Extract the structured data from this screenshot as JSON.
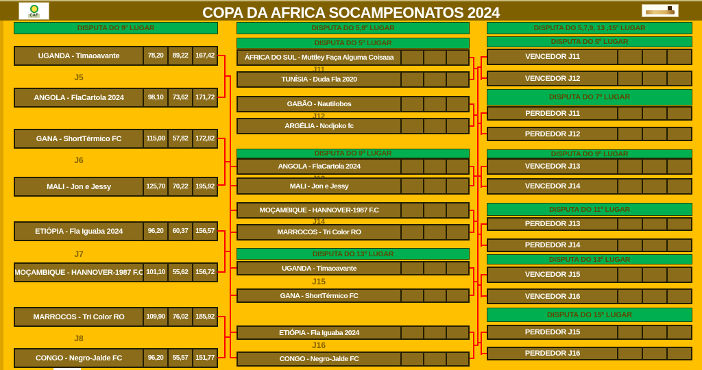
{
  "header": {
    "title": "COPA DA AFRICA SOCAMPEONATOS  2024",
    "caf_logo_text": "CAF"
  },
  "colors": {
    "background_gold": "#FFC000",
    "cell_brown": "#8A6C1A",
    "banner_brown": "#7F6000",
    "header_green": "#00B050",
    "connector_red": "#FF0000"
  },
  "columns": {
    "left": {
      "header": "DISPUTA DO 9º LUGAR",
      "matches": [
        {
          "label": "J5",
          "teams": [
            {
              "name": "UGANDA - Timaoavante",
              "scores": [
                "78,20",
                "89,22",
                "167,42"
              ]
            },
            {
              "name": "ANGOLA - FlaCartola 2024",
              "scores": [
                "98,10",
                "73,62",
                "171,72"
              ]
            }
          ]
        },
        {
          "label": "J6",
          "teams": [
            {
              "name": "GANA - ShortTérmico FC",
              "scores": [
                "115,00",
                "57,82",
                "172,82"
              ]
            },
            {
              "name": "MALI - Jon e Jessy",
              "scores": [
                "125,70",
                "70,22",
                "195,92"
              ]
            }
          ]
        },
        {
          "label": "J7",
          "teams": [
            {
              "name": "ETIÓPIA - Fla Iguaba 2024",
              "scores": [
                "96,20",
                "60,37",
                "156,57"
              ]
            },
            {
              "name": "MOÇAMBIQUE - HANNOVER-1987 F.C",
              "scores": [
                "101,10",
                "55,62",
                "156,72"
              ]
            }
          ]
        },
        {
          "label": "J8",
          "teams": [
            {
              "name": "MARROCOS - Tri Color RO",
              "scores": [
                "109,90",
                "76,02",
                "185,92"
              ]
            },
            {
              "name": "CONGO - Negro-Jalde FC",
              "scores": [
                "96,20",
                "55,57",
                "151,77"
              ]
            }
          ]
        }
      ]
    },
    "middle": {
      "header": "DISPUTA DO 5,9º LUGAR",
      "sections": [
        {
          "header": "DISPUTA DO 5º LUGAR",
          "matches": [
            {
              "label": "J11",
              "teams": [
                "ÁFRICA DO SUL - Muttley Faça Alguma Coisaaa",
                "TUNÍSIA - Duda Fla 2020"
              ]
            },
            {
              "label": "J12",
              "teams": [
                "GABÃO - Nautilobos",
                "ARGÉLIA -  Nodjoko fc"
              ]
            }
          ]
        },
        {
          "header": "DISPUTA DO 9º LUGAR",
          "matches": [
            {
              "label": "J13",
              "teams": [
                "ANGOLA - FlaCartola 2024",
                "MALI - Jon e Jessy"
              ]
            },
            {
              "label": "J14",
              "teams": [
                "MOÇAMBIQUE - HANNOVER-1987 F.C",
                "MARROCOS - Tri Color RO"
              ]
            }
          ]
        },
        {
          "header": "DISPUTA DO 13º LUGAR",
          "matches": [
            {
              "label": "J15",
              "teams": [
                "UGANDA - Timaoavante",
                "GANA - ShortTérmico FC"
              ]
            },
            {
              "label": "J16",
              "teams": [
                "ETIÓPIA - Fla Iguaba 2024",
                "CONGO - Negro-Jalde FC"
              ]
            }
          ]
        }
      ]
    },
    "right": {
      "header": "DISPUTA DO 5,7,9, 13 ,15º LUGAR",
      "sections": [
        {
          "header": "DISPUTA DO 5º LUGAR",
          "rows": [
            "VENCEDOR J11",
            "VENCEDOR J12"
          ]
        },
        {
          "header": "DISPUTA DO 7º LUGAR",
          "rows": [
            "PERDEDOR J11",
            "PERDEDOR J12"
          ]
        },
        {
          "header": "DISPUTA DO 9º LUGAR",
          "rows": [
            "VENCEDOR J13",
            "VENCEDOR J14"
          ]
        },
        {
          "header": "DISPUTA DO 11º LUGAR",
          "rows": [
            "PERDEDOR J13",
            "PERDEDOR J14"
          ]
        },
        {
          "header": "DISPUTA DO 13º LUGAR",
          "rows": [
            "VENCEDOR J15",
            "VENCEDOR J16"
          ]
        },
        {
          "header": "DISPUTA DO 15º LUGAR",
          "rows": [
            "PERDEDOR J15",
            "PERDEDOR J16"
          ]
        }
      ]
    }
  }
}
